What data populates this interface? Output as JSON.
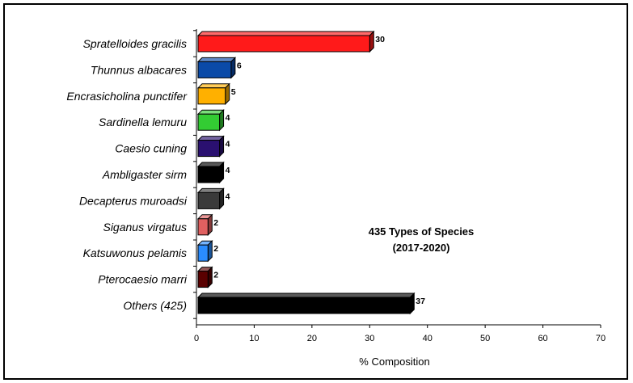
{
  "chart_data": {
    "type": "bar",
    "orientation": "horizontal",
    "style": "3d",
    "categories": [
      "Spratelloides gracilis",
      "Thunnus albacares",
      "Encrasicholina punctifer",
      "Sardinella lemuru",
      "Caesio cuning",
      "Ambligaster sirm",
      "Decapterus muroadsi",
      "Siganus virgatus",
      "Katsuwonus pelamis",
      "Pterocaesio marri",
      "Others (425)"
    ],
    "values": [
      30,
      6,
      5,
      4,
      4,
      4,
      4,
      2,
      2,
      2,
      37
    ],
    "colors": [
      "#ff1a1a",
      "#0a4aa8",
      "#ffb000",
      "#33cc33",
      "#2a1070",
      "#000000",
      "#3a3a3a",
      "#e06060",
      "#2a8cff",
      "#5a0000",
      "#000000"
    ],
    "xlabel": "% Composition",
    "ylabel": "",
    "xlim": [
      0,
      70
    ],
    "xticks": [
      0,
      10,
      20,
      30,
      40,
      50,
      60,
      70
    ],
    "annotation": [
      "435 Types of Species",
      "(2017-2020)"
    ],
    "grid": false,
    "legend": "none"
  }
}
